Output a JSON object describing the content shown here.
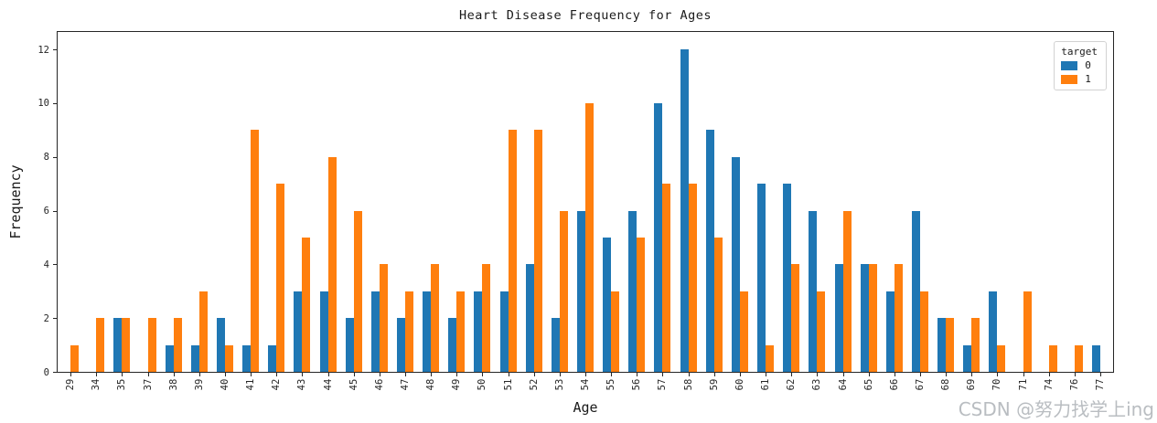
{
  "figure": {
    "watermark": "CSDN @努力找学上ing"
  },
  "chart_data": {
    "type": "bar",
    "title": "Heart Disease Frequency for Ages",
    "xlabel": "Age",
    "ylabel": "Frequency",
    "categories": [
      "29",
      "34",
      "35",
      "37",
      "38",
      "39",
      "40",
      "41",
      "42",
      "43",
      "44",
      "45",
      "46",
      "47",
      "48",
      "49",
      "50",
      "51",
      "52",
      "53",
      "54",
      "55",
      "56",
      "57",
      "58",
      "59",
      "60",
      "61",
      "62",
      "63",
      "64",
      "65",
      "66",
      "67",
      "68",
      "69",
      "70",
      "71",
      "74",
      "76",
      "77"
    ],
    "series": [
      {
        "name": "0",
        "color": "#1f77b4",
        "values": [
          0,
          0,
          2,
          0,
          1,
          1,
          2,
          1,
          1,
          3,
          3,
          2,
          3,
          2,
          3,
          2,
          3,
          3,
          4,
          2,
          6,
          5,
          6,
          10,
          12,
          9,
          8,
          7,
          7,
          6,
          4,
          4,
          3,
          6,
          2,
          1,
          3,
          0,
          0,
          0,
          1
        ]
      },
      {
        "name": "1",
        "color": "#ff7f0e",
        "values": [
          1,
          2,
          2,
          2,
          2,
          3,
          1,
          9,
          7,
          5,
          8,
          6,
          4,
          3,
          4,
          3,
          4,
          9,
          9,
          6,
          10,
          3,
          5,
          7,
          7,
          5,
          3,
          1,
          4,
          3,
          6,
          4,
          4,
          3,
          2,
          2,
          1,
          3,
          1,
          1,
          0
        ]
      }
    ],
    "legend": {
      "title": "target",
      "position": "upper right"
    },
    "ylim": [
      0,
      12.65
    ],
    "yticks": [
      0,
      2,
      4,
      6,
      8,
      10,
      12
    ],
    "grid": false
  }
}
